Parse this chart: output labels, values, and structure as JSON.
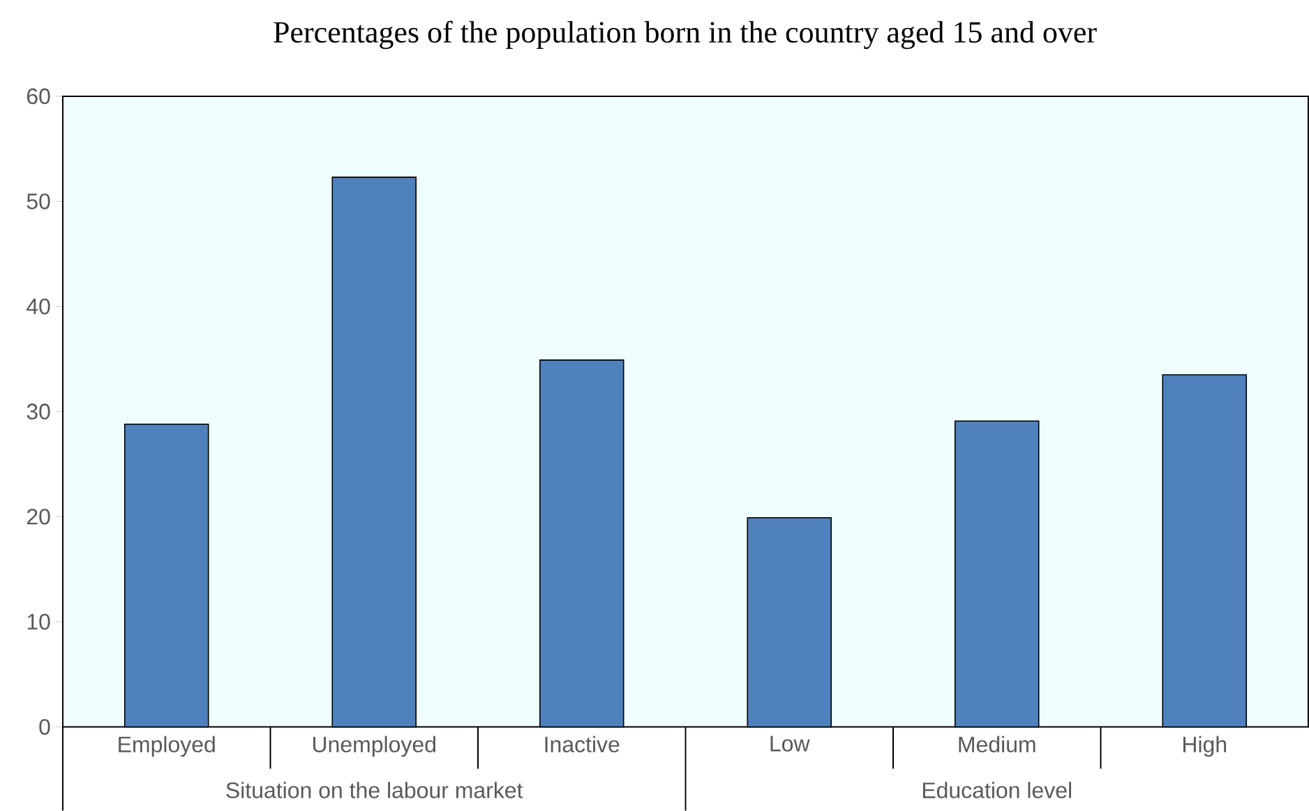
{
  "chart_data": {
    "type": "bar",
    "title": "Percentages of the population born in the country aged 15 and over",
    "categories": [
      "Employed",
      "Unemployed",
      "Inactive",
      "Low",
      "Medium",
      "High"
    ],
    "values": [
      28.8,
      52.3,
      34.9,
      19.9,
      29.1,
      33.5
    ],
    "color": "#4f81bd",
    "ylim": [
      0,
      60
    ],
    "yticks": [
      0,
      10,
      20,
      30,
      40,
      50,
      60
    ],
    "grid": false,
    "annotations": [
      "Situation on the labour market",
      "Education level"
    ]
  }
}
